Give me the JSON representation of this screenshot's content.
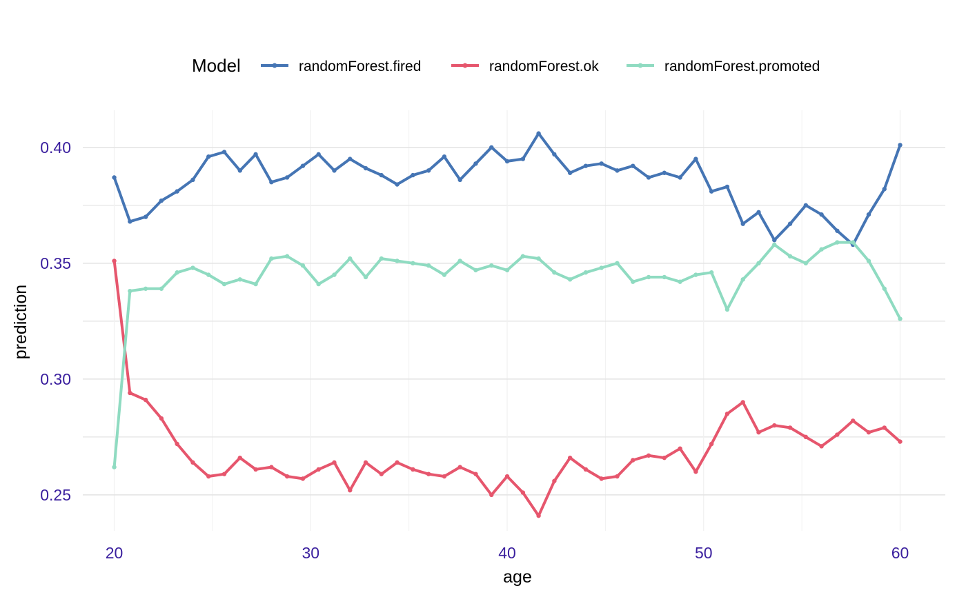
{
  "chart_data": {
    "type": "line",
    "title": "",
    "xlabel": "age",
    "ylabel": "prediction",
    "legend_title": "Model",
    "legend_position": "top",
    "xlim": [
      18.4,
      62.3
    ],
    "ylim": [
      0.2345,
      0.416
    ],
    "x_ticks": [
      20,
      30,
      40,
      50,
      60
    ],
    "x_tick_labels": [
      "20",
      "30",
      "40",
      "50",
      "60"
    ],
    "y_ticks": [
      0.25,
      0.3,
      0.35,
      0.4
    ],
    "y_tick_labels": [
      "0.25",
      "0.30",
      "0.35",
      "0.40"
    ],
    "grid": true,
    "colors": {
      "axis_text": "#3a1f9e",
      "grid_major": "#e3e3e3",
      "grid_minor": "#f1f1f1"
    },
    "x": [
      20.0,
      20.8,
      21.6,
      22.4,
      23.2,
      24.0,
      24.8,
      25.6,
      26.4,
      27.2,
      28.0,
      28.8,
      29.6,
      30.4,
      31.2,
      32.0,
      32.8,
      33.6,
      34.4,
      35.2,
      36.0,
      36.8,
      37.6,
      38.4,
      39.2,
      40.0,
      40.8,
      41.6,
      42.4,
      43.2,
      44.0,
      44.8,
      45.6,
      46.4,
      47.2,
      48.0,
      48.8,
      49.6,
      50.4,
      51.2,
      52.0,
      52.8,
      53.6,
      54.4,
      55.2,
      56.0,
      56.8,
      57.6,
      58.4,
      59.2,
      60.0
    ],
    "series": [
      {
        "name": "randomForest.fired",
        "color": "#4575b4",
        "values": [
          0.387,
          0.368,
          0.37,
          0.377,
          0.381,
          0.386,
          0.396,
          0.398,
          0.39,
          0.397,
          0.385,
          0.387,
          0.392,
          0.397,
          0.39,
          0.395,
          0.391,
          0.388,
          0.384,
          0.388,
          0.39,
          0.396,
          0.386,
          0.393,
          0.4,
          0.394,
          0.395,
          0.406,
          0.397,
          0.389,
          0.392,
          0.393,
          0.39,
          0.392,
          0.387,
          0.389,
          0.387,
          0.395,
          0.381,
          0.383,
          0.367,
          0.372,
          0.36,
          0.367,
          0.375,
          0.371,
          0.364,
          0.358,
          0.371,
          0.382,
          0.401
        ]
      },
      {
        "name": "randomForest.ok",
        "color": "#e6566d",
        "values": [
          0.351,
          0.294,
          0.291,
          0.283,
          0.272,
          0.264,
          0.258,
          0.259,
          0.266,
          0.261,
          0.262,
          0.258,
          0.257,
          0.261,
          0.264,
          0.252,
          0.264,
          0.259,
          0.264,
          0.261,
          0.259,
          0.258,
          0.262,
          0.259,
          0.25,
          0.258,
          0.251,
          0.241,
          0.256,
          0.266,
          0.261,
          0.257,
          0.258,
          0.265,
          0.267,
          0.266,
          0.27,
          0.26,
          0.272,
          0.285,
          0.29,
          0.277,
          0.28,
          0.279,
          0.275,
          0.271,
          0.276,
          0.282,
          0.277,
          0.279,
          0.273
        ]
      },
      {
        "name": "randomForest.promoted",
        "color": "#8fdbc1",
        "values": [
          0.262,
          0.338,
          0.339,
          0.339,
          0.346,
          0.348,
          0.345,
          0.341,
          0.343,
          0.341,
          0.352,
          0.353,
          0.349,
          0.341,
          0.345,
          0.352,
          0.344,
          0.352,
          0.351,
          0.35,
          0.349,
          0.345,
          0.351,
          0.347,
          0.349,
          0.347,
          0.353,
          0.352,
          0.346,
          0.343,
          0.346,
          0.348,
          0.35,
          0.342,
          0.344,
          0.344,
          0.342,
          0.345,
          0.346,
          0.33,
          0.343,
          0.35,
          0.358,
          0.353,
          0.35,
          0.356,
          0.359,
          0.359,
          0.351,
          0.339,
          0.326
        ]
      }
    ]
  }
}
